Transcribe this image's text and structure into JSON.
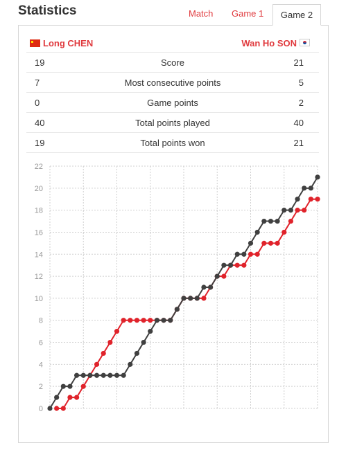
{
  "header": {
    "title": "Statistics",
    "tabs": [
      {
        "label": "Match",
        "active": false
      },
      {
        "label": "Game 1",
        "active": false
      },
      {
        "label": "Game 2",
        "active": true
      }
    ]
  },
  "players": {
    "left": {
      "name": "Long CHEN",
      "flag": "china-flag-icon"
    },
    "right": {
      "name": "Wan Ho SON",
      "flag": "korea-flag-icon"
    }
  },
  "stats": [
    {
      "left": "19",
      "label": "Score",
      "right": "21"
    },
    {
      "left": "7",
      "label": "Most consecutive points",
      "right": "5"
    },
    {
      "left": "0",
      "label": "Game points",
      "right": "2"
    },
    {
      "left": "40",
      "label": "Total points played",
      "right": "40"
    },
    {
      "left": "19",
      "label": "Total points won",
      "right": "21"
    }
  ],
  "colors": {
    "accent": "#e03a3e",
    "player_left": "#e0232b",
    "player_right": "#404040"
  },
  "chart_data": {
    "type": "line",
    "title": "",
    "xlabel": "",
    "ylabel": "",
    "ylim": [
      0,
      22
    ],
    "yticks": [
      0,
      2,
      4,
      6,
      8,
      10,
      12,
      14,
      16,
      18,
      20,
      22
    ],
    "xlim": [
      0,
      40
    ],
    "grid": true,
    "series": [
      {
        "name": "Long CHEN",
        "color": "#e0232b",
        "x": [
          1,
          2,
          3,
          4,
          5,
          6,
          7,
          8,
          9,
          10,
          11,
          12,
          13,
          14,
          15,
          16,
          17,
          18,
          19,
          20,
          21,
          22,
          23,
          24,
          25,
          26,
          27,
          28,
          29,
          30,
          31,
          32,
          33,
          34,
          35,
          36,
          37,
          38,
          39,
          40
        ],
        "values": [
          0,
          0,
          1,
          1,
          2,
          3,
          4,
          5,
          6,
          7,
          8,
          8,
          8,
          8,
          8,
          8,
          8,
          8,
          9,
          10,
          10,
          10,
          10,
          11,
          12,
          12,
          13,
          13,
          13,
          14,
          14,
          15,
          15,
          15,
          16,
          17,
          18,
          18,
          19,
          19
        ]
      },
      {
        "name": "Wan Ho SON",
        "color": "#404040",
        "x": [
          0,
          1,
          2,
          3,
          4,
          5,
          6,
          7,
          8,
          9,
          10,
          11,
          12,
          13,
          14,
          15,
          16,
          17,
          18,
          19,
          20,
          21,
          22,
          23,
          24,
          25,
          26,
          27,
          28,
          29,
          30,
          31,
          32,
          33,
          34,
          35,
          36,
          37,
          38,
          39,
          40
        ],
        "values": [
          0,
          1,
          2,
          2,
          3,
          3,
          3,
          3,
          3,
          3,
          3,
          3,
          4,
          5,
          6,
          7,
          8,
          8,
          8,
          9,
          10,
          10,
          10,
          11,
          11,
          12,
          13,
          13,
          14,
          14,
          15,
          16,
          17,
          17,
          17,
          18,
          18,
          19,
          20,
          20,
          21
        ]
      }
    ]
  }
}
